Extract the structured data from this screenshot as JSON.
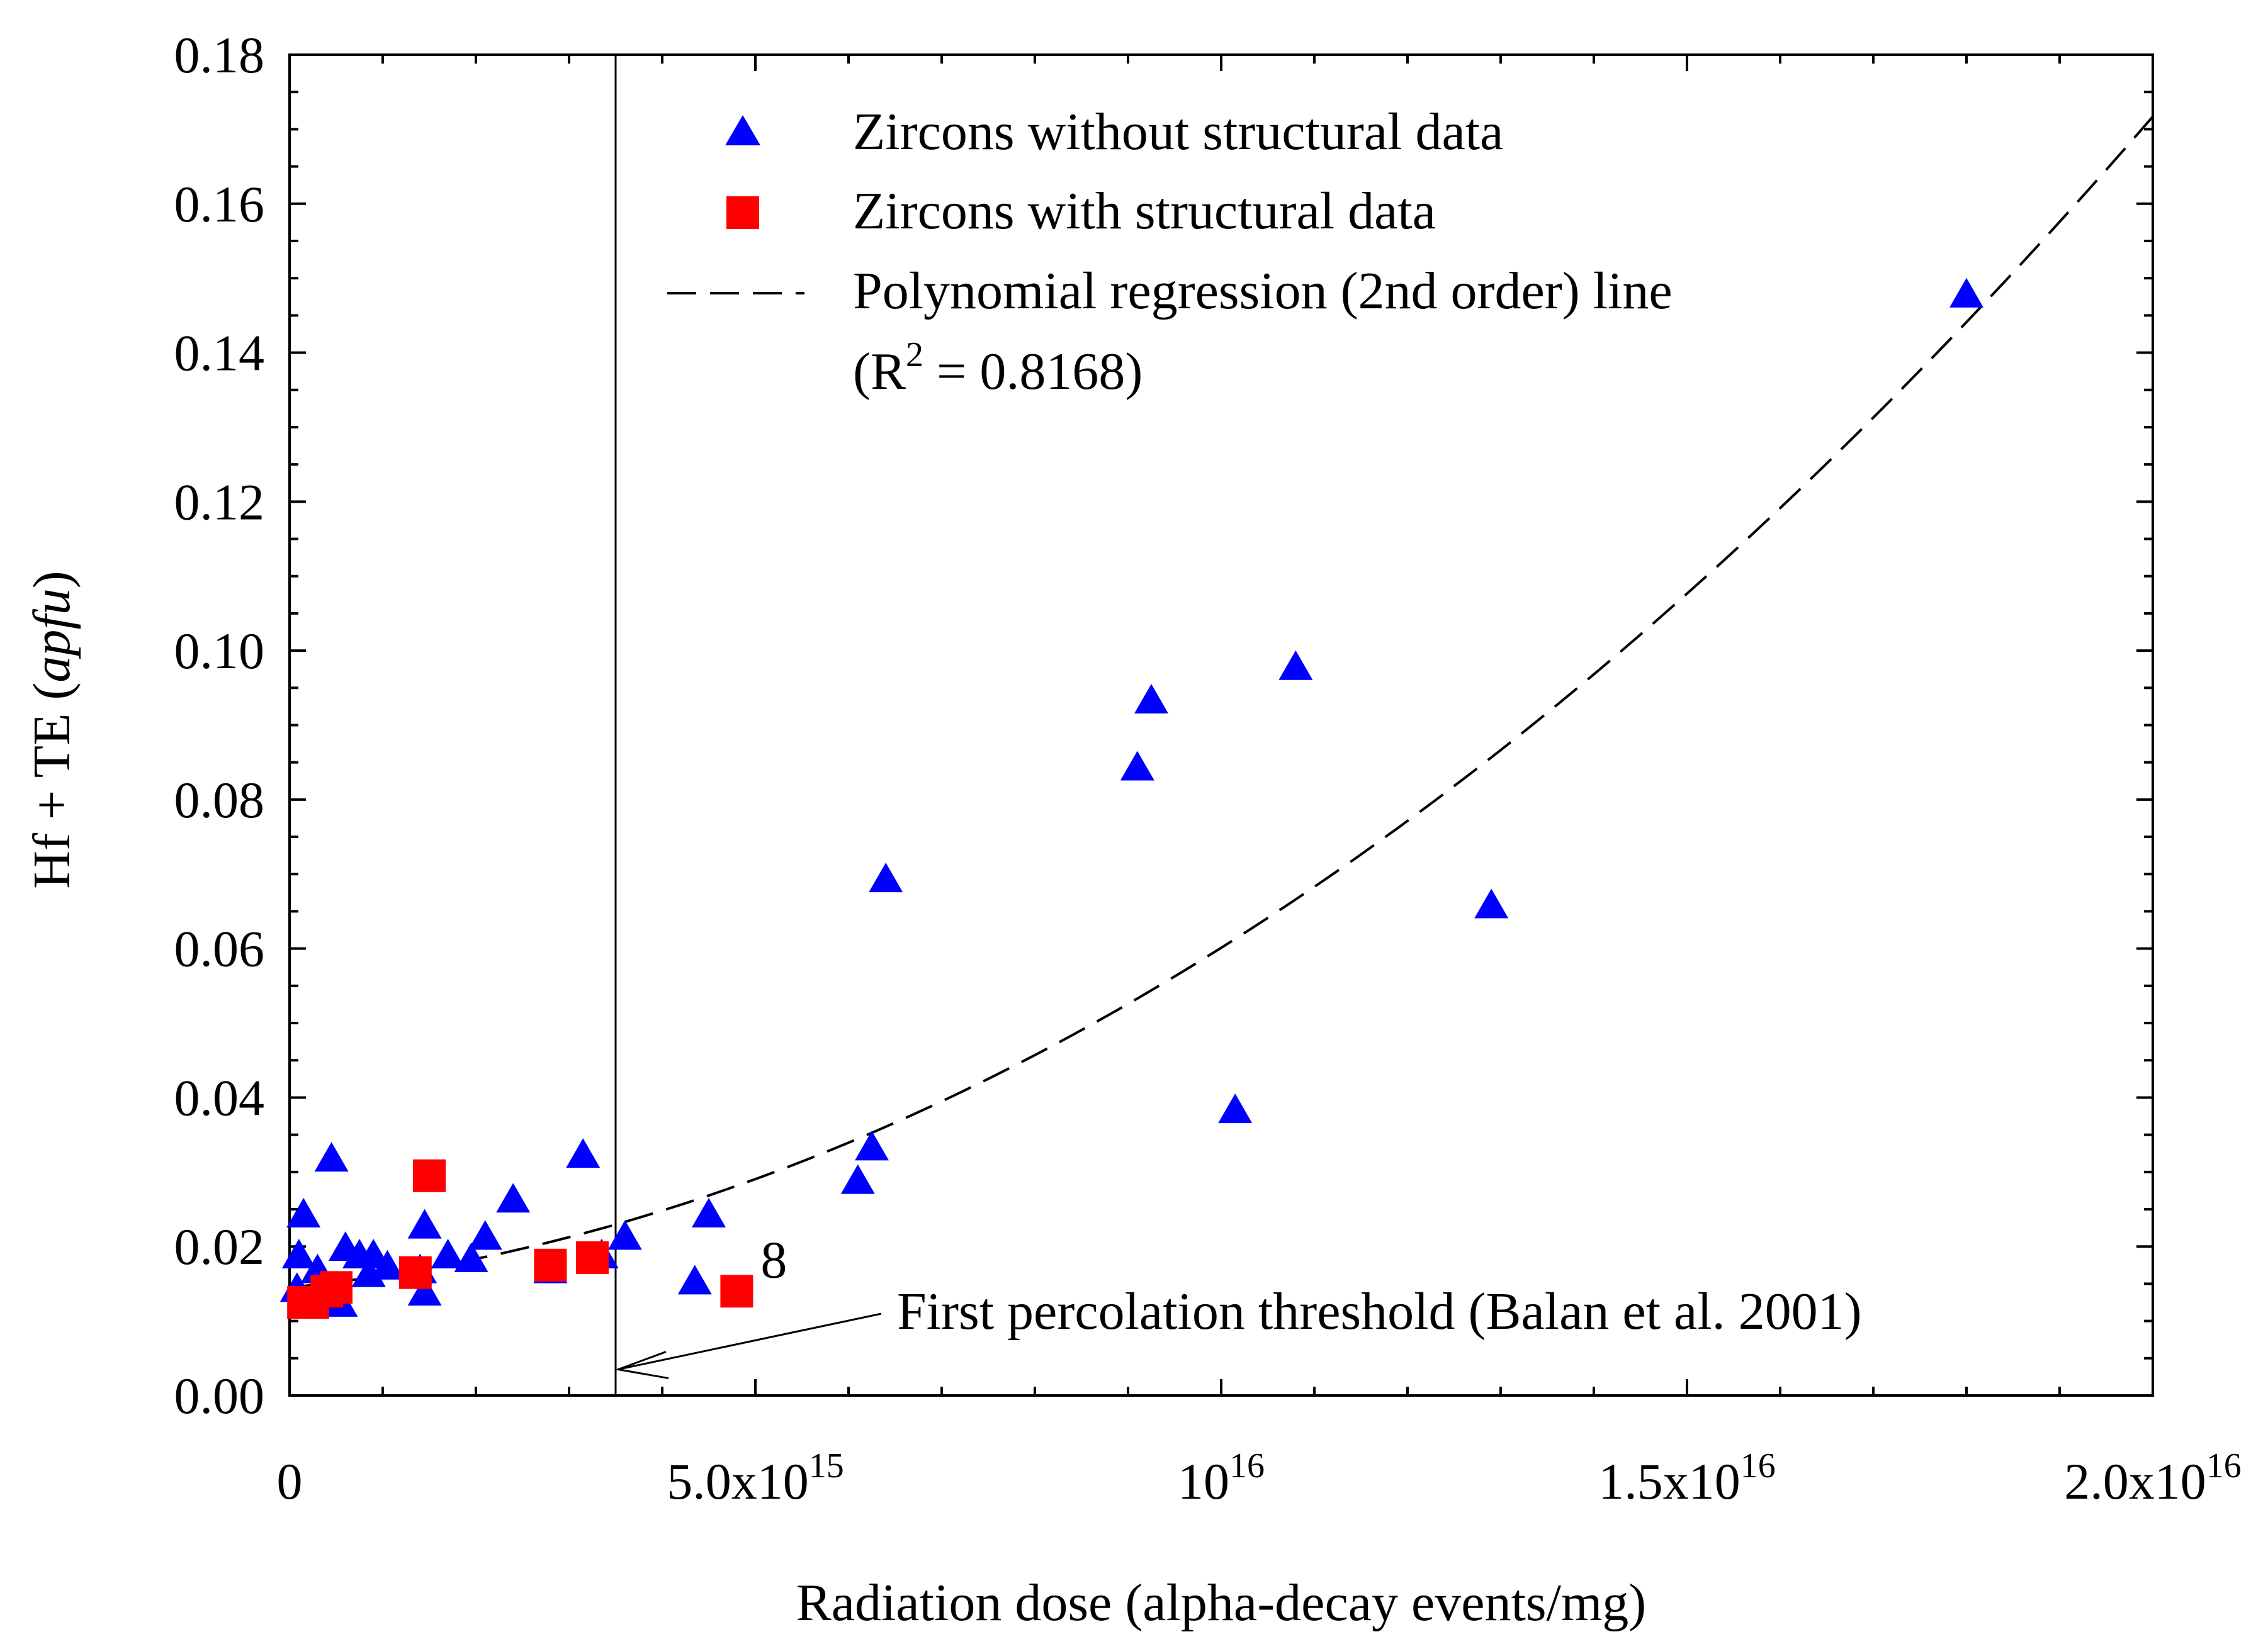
{
  "chart_data": {
    "type": "scatter",
    "xlabel": "Radiation dose (alpha-decay events/mg)",
    "ylabel_main": "Hf + TE",
    "ylabel_unit": "apfu",
    "xlim": [
      0,
      2e+16
    ],
    "ylim": [
      0,
      0.18
    ],
    "x_ticks": [
      {
        "value": 0,
        "mantissa": "0",
        "exp": ""
      },
      {
        "value": 5000000000000000.0,
        "mantissa": "5.0x10",
        "exp": "15"
      },
      {
        "value": 1e+16,
        "mantissa": "10",
        "exp": "16"
      },
      {
        "value": 1.5e+16,
        "mantissa": "1.5x10",
        "exp": "16"
      },
      {
        "value": 2e+16,
        "mantissa": "2.0x10",
        "exp": "16"
      }
    ],
    "y_ticks": [
      {
        "value": 0.0,
        "label": "0.00"
      },
      {
        "value": 0.02,
        "label": "0.02"
      },
      {
        "value": 0.04,
        "label": "0.04"
      },
      {
        "value": 0.06,
        "label": "0.06"
      },
      {
        "value": 0.08,
        "label": "0.08"
      },
      {
        "value": 0.1,
        "label": "0.10"
      },
      {
        "value": 0.12,
        "label": "0.12"
      },
      {
        "value": 0.14,
        "label": "0.14"
      },
      {
        "value": 0.16,
        "label": "0.16"
      },
      {
        "value": 0.18,
        "label": "0.18"
      }
    ],
    "series": [
      {
        "name": "Zircons without structural data",
        "marker": "triangle",
        "color": "#0000ff",
        "points": [
          [
            100000000000000.0,
            0.0185
          ],
          [
            150000000000000.0,
            0.024
          ],
          [
            80000000000000.0,
            0.014
          ],
          [
            300000000000000.0,
            0.0165
          ],
          [
            450000000000000.0,
            0.0315
          ],
          [
            550000000000000.0,
            0.012
          ],
          [
            600000000000000.0,
            0.0195
          ],
          [
            750000000000000.0,
            0.0185
          ],
          [
            850000000000000.0,
            0.016
          ],
          [
            900000000000000.0,
            0.0185
          ],
          [
            1050000000000000.0,
            0.017
          ],
          [
            1400000000000000.0,
            0.0165
          ],
          [
            1450000000000000.0,
            0.0225
          ],
          [
            1450000000000000.0,
            0.0135
          ],
          [
            1700000000000000.0,
            0.0185
          ],
          [
            1950000000000000.0,
            0.018
          ],
          [
            2100000000000000.0,
            0.021
          ],
          [
            2400000000000000.0,
            0.026
          ],
          [
            2800000000000000.0,
            0.0165
          ],
          [
            3150000000000000.0,
            0.032
          ],
          [
            3350000000000000.0,
            0.0185
          ],
          [
            3600000000000000.0,
            0.021
          ],
          [
            4350000000000000.0,
            0.015
          ],
          [
            4500000000000000.0,
            0.024
          ],
          [
            6100000000000000.0,
            0.0285
          ],
          [
            6250000000000000.0,
            0.033
          ],
          [
            6400000000000000.0,
            0.069
          ],
          [
            9100000000000000.0,
            0.084
          ],
          [
            9250000000000000.0,
            0.093
          ],
          [
            1.015e+16,
            0.038
          ],
          [
            1.08e+16,
            0.0975
          ],
          [
            1.29e+16,
            0.0655
          ],
          [
            1.8e+16,
            0.1475
          ]
        ]
      },
      {
        "name": "Zircons with structural data",
        "marker": "square",
        "color": "#ff0000",
        "points": [
          [
            150000000000000.0,
            0.0125
          ],
          [
            250000000000000.0,
            0.0125
          ],
          [
            400000000000000.0,
            0.014
          ],
          [
            500000000000000.0,
            0.0145
          ],
          [
            1350000000000000.0,
            0.0165
          ],
          [
            1500000000000000.0,
            0.0295
          ],
          [
            2800000000000000.0,
            0.0175
          ],
          [
            3250000000000000.0,
            0.0185
          ],
          [
            4800000000000000.0,
            0.014
          ]
        ]
      }
    ],
    "regression": {
      "name": "Polynomial regression (2nd order) line",
      "r2_prefix": "(R",
      "r2_exp": "2",
      "r2_value": " = 0.8168)",
      "coefficients": {
        "a": 3.3e-34,
        "b": 1.26e-18,
        "c": 0.0145
      },
      "x_range": [
        0,
        2e+16
      ]
    },
    "threshold": {
      "x": 3500000000000000.0,
      "label": "First percolation threshold (Balan et al. 2001)"
    },
    "point_label": {
      "text": "8",
      "x": 4800000000000000.0,
      "y": 0.014
    },
    "legend_position": "top-center"
  }
}
